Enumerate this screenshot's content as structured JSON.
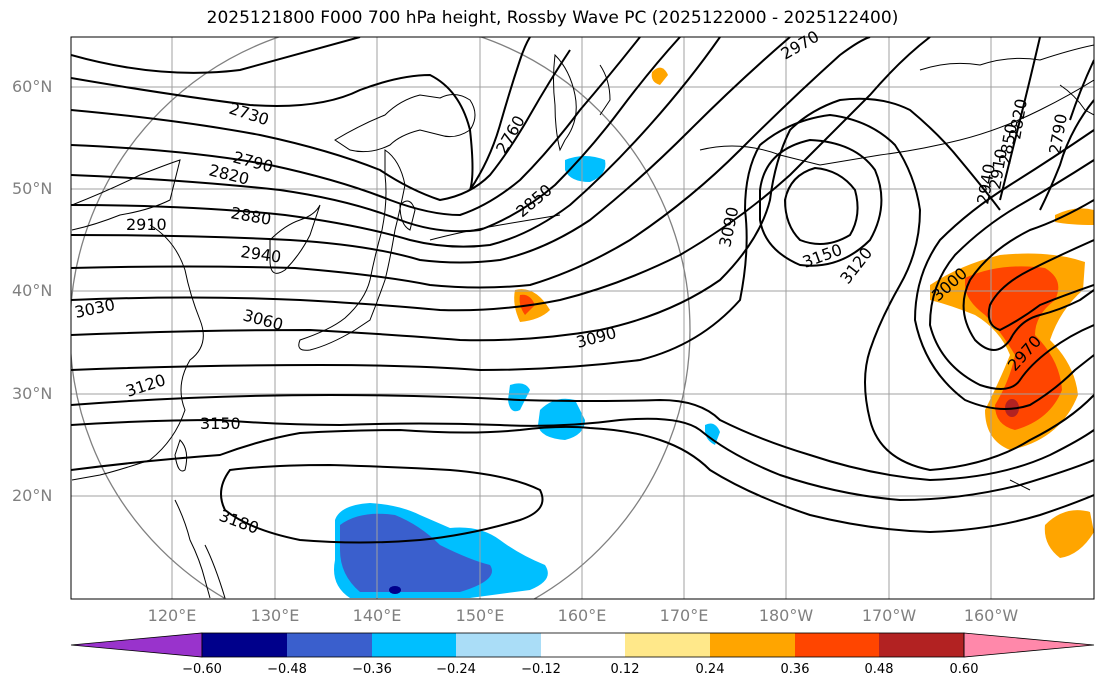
{
  "title": "2025121800 F000 700 hPa height, Rossby Wave PC (2025122000 - 2025122400)",
  "axes": {
    "lat_labels": [
      "60°N",
      "50°N",
      "40°N",
      "30°N",
      "20°N"
    ],
    "lon_labels": [
      "120°E",
      "130°E",
      "140°E",
      "150°E",
      "160°E",
      "170°E",
      "180°W",
      "170°W",
      "160°W"
    ]
  },
  "contour_labels": [
    "2730",
    "2790",
    "2820",
    "2910",
    "2880",
    "2940",
    "3030",
    "3060",
    "3120",
    "3150",
    "3180",
    "2760",
    "2850",
    "3090",
    "3090",
    "3150",
    "3120",
    "3000",
    "2970",
    "2970",
    "2820",
    "2850",
    "2910",
    "2940",
    "2790"
  ],
  "colorbar": {
    "labels": [
      "−0.60",
      "−0.48",
      "−0.36",
      "−0.24",
      "−0.12",
      "0.12",
      "0.24",
      "0.36",
      "0.48",
      "0.60"
    ],
    "colors": [
      "#9933cc",
      "#00008b",
      "#3a5fcd",
      "#00bfff",
      "#aaddf7",
      "#ffffff",
      "#ffe88a",
      "#ffa500",
      "#ff4500",
      "#b22222",
      "#ff88aa"
    ]
  },
  "colors": {
    "grid": "#a0a0a0",
    "contour": "#000000",
    "coast": "#000000",
    "circle": "#808080"
  }
}
